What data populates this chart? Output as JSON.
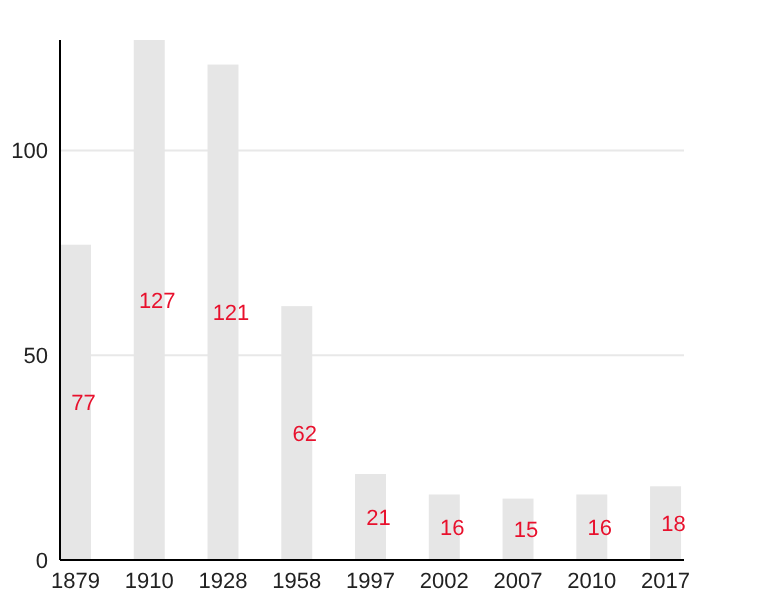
{
  "chart_data": {
    "type": "bar",
    "categories": [
      "1879",
      "1910",
      "1928",
      "1958",
      "1997",
      "2002",
      "2007",
      "2010",
      "2017"
    ],
    "values": [
      77,
      127,
      121,
      62,
      21,
      16,
      15,
      16,
      18
    ],
    "color": "#e6e6e6",
    "ylim": [
      0,
      127
    ],
    "yticks": [
      0,
      50,
      100
    ],
    "grid": "y",
    "data_labels": true
  }
}
